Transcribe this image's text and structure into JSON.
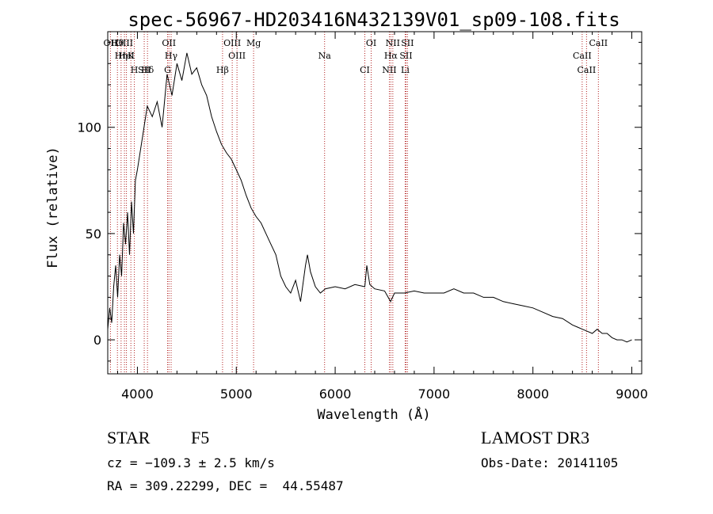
{
  "chart_data": {
    "type": "line",
    "title": "spec-56967-HD203416N432139V01_sp09-108.fits",
    "xlabel": "Wavelength (Å)",
    "ylabel": "Flux (relative)",
    "xlim": [
      3700,
      9100
    ],
    "ylim": [
      -16,
      145
    ],
    "xticks": [
      4000,
      5000,
      6000,
      7000,
      8000,
      9000
    ],
    "yticks": [
      0,
      50,
      100
    ],
    "series": [
      {
        "x": [
          3700,
          3720,
          3740,
          3760,
          3780,
          3800,
          3820,
          3840,
          3860,
          3880,
          3900,
          3920,
          3940,
          3960,
          3980,
          4000,
          4050,
          4100,
          4150,
          4200,
          4250,
          4300,
          4350,
          4400,
          4450,
          4500,
          4550,
          4600,
          4650,
          4700,
          4750,
          4800,
          4850,
          4900,
          4950,
          5000,
          5050,
          5100,
          5150,
          5200,
          5250,
          5300,
          5350,
          5400,
          5450,
          5500,
          5550,
          5600,
          5650,
          5700,
          5720,
          5750,
          5800,
          5850,
          5900,
          6000,
          6100,
          6200,
          6300,
          6320,
          6350,
          6400,
          6500,
          6560,
          6600,
          6700,
          6800,
          6900,
          7000,
          7100,
          7200,
          7300,
          7400,
          7500,
          7600,
          7700,
          7800,
          7900,
          8000,
          8100,
          8200,
          8300,
          8400,
          8450,
          8500,
          8550,
          8600,
          8650,
          8700,
          8750,
          8800,
          8850,
          8900,
          8950,
          9000
        ],
        "y": [
          5,
          15,
          8,
          25,
          35,
          20,
          40,
          30,
          55,
          45,
          60,
          40,
          65,
          50,
          75,
          80,
          95,
          110,
          105,
          112,
          100,
          125,
          115,
          130,
          122,
          135,
          125,
          128,
          120,
          115,
          105,
          98,
          92,
          88,
          85,
          80,
          75,
          68,
          62,
          58,
          55,
          50,
          45,
          40,
          30,
          25,
          22,
          28,
          18,
          35,
          40,
          32,
          25,
          22,
          24,
          25,
          24,
          26,
          25,
          35,
          26,
          24,
          23,
          18,
          22,
          22,
          23,
          22,
          22,
          22,
          24,
          22,
          22,
          20,
          20,
          18,
          17,
          16,
          15,
          13,
          11,
          10,
          7,
          6,
          5,
          4,
          3,
          5,
          3,
          3,
          1,
          0,
          0,
          -1,
          0
        ]
      }
    ],
    "lines": [
      {
        "label": "Hθ",
        "x": 3798
      },
      {
        "label": "K",
        "x": 3934
      },
      {
        "label": "Hδ",
        "x": 4102
      },
      {
        "label": "OII",
        "x": 3727
      },
      {
        "label": "HeI",
        "x": 3889
      },
      {
        "label": "SII",
        "x": 4069
      },
      {
        "label": "OIII",
        "x": 3869
      },
      {
        "label": "Hη",
        "x": 3835
      },
      {
        "label": "H",
        "x": 3969
      },
      {
        "label": "OII",
        "x": 4319
      },
      {
        "label": "Hγ",
        "x": 4341
      },
      {
        "label": "G",
        "x": 4305
      },
      {
        "label": "OIII",
        "x": 4959
      },
      {
        "label": "OIII",
        "x": 5007
      },
      {
        "label": "Hβ",
        "x": 4861
      },
      {
        "label": "Mg",
        "x": 5175
      },
      {
        "label": "Na",
        "x": 5893
      },
      {
        "label": "CI",
        "x": 6300
      },
      {
        "label": "OI",
        "x": 6364
      },
      {
        "label": "Hα",
        "x": 6563
      },
      {
        "label": "NII",
        "x": 6548
      },
      {
        "label": "NII",
        "x": 6583
      },
      {
        "label": "SII",
        "x": 6716
      },
      {
        "label": "Li",
        "x": 6708
      },
      {
        "label": "SII",
        "x": 6731
      },
      {
        "label": "CaII",
        "x": 8498
      },
      {
        "label": "CaII",
        "x": 8542
      },
      {
        "label": "CaII",
        "x": 8662
      }
    ]
  },
  "info": {
    "object_class": "STAR",
    "subclass": "F5",
    "survey": "LAMOST DR3",
    "cz": "cz = −109.3 ± 2.5 km/s",
    "obs_date": "Obs-Date: 20141105",
    "coords": "RA = 309.22299, DEC =  44.55487"
  },
  "colors": {
    "spectrum": "#000000",
    "line_marker": "#b22222",
    "axis": "#000000"
  }
}
